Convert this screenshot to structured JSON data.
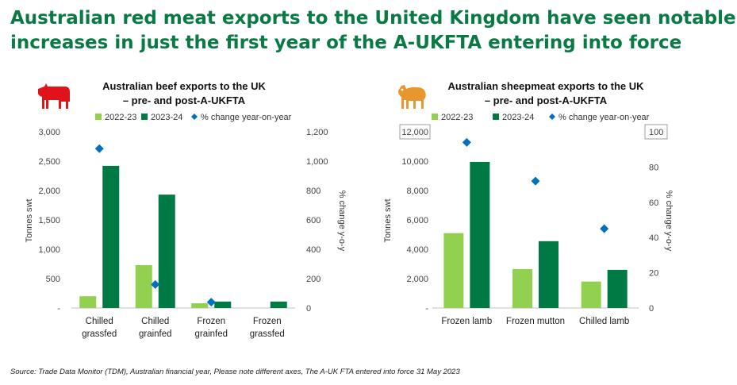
{
  "headline": {
    "line1": "Australian red meat exports to the United Kingdom have seen notable",
    "line2": "increases in just the first year of the A-UKFTA entering into force"
  },
  "colors": {
    "headline": "#0a7a45",
    "series_2022_23": "#92d050",
    "series_2023_24": "#007a45",
    "pct_change": "#0070c0",
    "cow_icon": "#e0121a",
    "sheep_icon": "#e8962e"
  },
  "icons": [
    "cow-icon",
    "sheep-icon"
  ],
  "source": "Source: Trade Data Monitor (TDM), Australian financial year, Please note different axes, The A-UK FTA entered into force 31 May 2023",
  "chart_data": [
    {
      "type": "bar",
      "title_line1": "Australian beef exports to the UK",
      "title_line2": "– pre- and post-A-UKFTA",
      "categories": [
        [
          "Chilled",
          "grassfed"
        ],
        [
          "Chilled",
          "grainfed"
        ],
        [
          "Frozen",
          "grainfed"
        ],
        [
          "Frozen",
          "grassfed"
        ]
      ],
      "legend": [
        "2022-23",
        "2023-24",
        "% change year-on-year"
      ],
      "series": [
        {
          "name": "2022-23",
          "values": [
            200,
            730,
            80,
            0
          ]
        },
        {
          "name": "2023-24",
          "values": [
            2420,
            1930,
            110,
            110
          ]
        }
      ],
      "secondary_series": {
        "name": "% change year-on-year",
        "values": [
          1085,
          160,
          40,
          null
        ]
      },
      "ylabel": "Tonnes swt",
      "y2label": "% change y-o-y",
      "ylim": [
        0,
        3000
      ],
      "y2lim": [
        0,
        1200
      ],
      "yticks": [
        "-",
        "500",
        "1,000",
        "1,500",
        "2,000",
        "2,500",
        "3,000"
      ],
      "y2ticks": [
        "0",
        "200",
        "400",
        "600",
        "800",
        "1,000",
        "1,200"
      ],
      "legend_position": "top"
    },
    {
      "type": "bar",
      "title_line1": "Australian sheepmeat exports to the UK",
      "title_line2": "– pre- and post-A-UKFTA",
      "categories": [
        [
          "Frozen lamb"
        ],
        [
          "Frozen mutton"
        ],
        [
          "Chilled lamb"
        ]
      ],
      "legend": [
        "2022-23",
        "2023-24",
        "% change year-on-year"
      ],
      "series": [
        {
          "name": "2022-23",
          "values": [
            5100,
            2650,
            1800
          ]
        },
        {
          "name": "2023-24",
          "values": [
            9950,
            4550,
            2600
          ]
        }
      ],
      "secondary_series": {
        "name": "% change year-on-year",
        "values": [
          94,
          72,
          45
        ]
      },
      "ylabel": "Tonnes swt",
      "y2label": "% change y-o-y",
      "ylim": [
        0,
        12000
      ],
      "y2lim": [
        0,
        100
      ],
      "yticks": [
        "-",
        "2,000",
        "4,000",
        "6,000",
        "8,000",
        "10,000",
        "12,000"
      ],
      "y2ticks": [
        "0",
        "20",
        "40",
        "60",
        "80",
        "100"
      ],
      "legend_position": "top"
    }
  ]
}
